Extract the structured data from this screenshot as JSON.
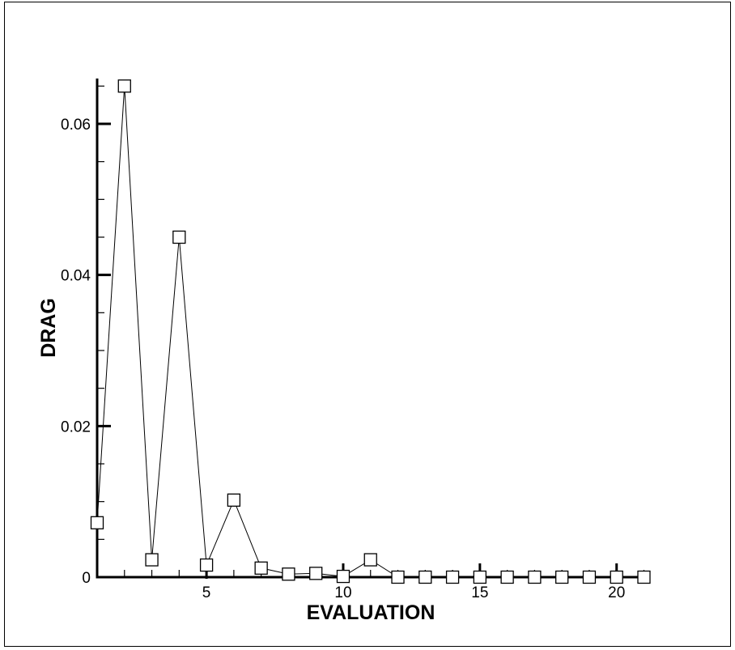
{
  "chart_data": {
    "type": "line",
    "title": "",
    "xlabel": "EVALUATION",
    "ylabel": "DRAG",
    "xlim": [
      1,
      21
    ],
    "ylim": [
      0,
      0.066
    ],
    "x_ticks": [
      5,
      10,
      15,
      20
    ],
    "x_tick_labels": [
      "5",
      "10",
      "15",
      "20"
    ],
    "y_ticks": [
      0,
      0.02,
      0.04,
      0.06
    ],
    "y_tick_labels": [
      "0",
      "0.02",
      "0.04",
      "0.06"
    ],
    "grid": false,
    "marker": "square",
    "series": [
      {
        "x": [
          1,
          2,
          3,
          4,
          5,
          6,
          7,
          8,
          9,
          10,
          11,
          12,
          13,
          14,
          15,
          16,
          17,
          18,
          19,
          20,
          21
        ],
        "values": [
          0.0072,
          0.065,
          0.0023,
          0.045,
          0.0016,
          0.0102,
          0.0012,
          0.0004,
          0.0005,
          0.0001,
          0.0023,
          0.0,
          0.0,
          0.0,
          0.0,
          0.0,
          0.0,
          0.0,
          0.0,
          0.0,
          0.0
        ]
      }
    ]
  }
}
